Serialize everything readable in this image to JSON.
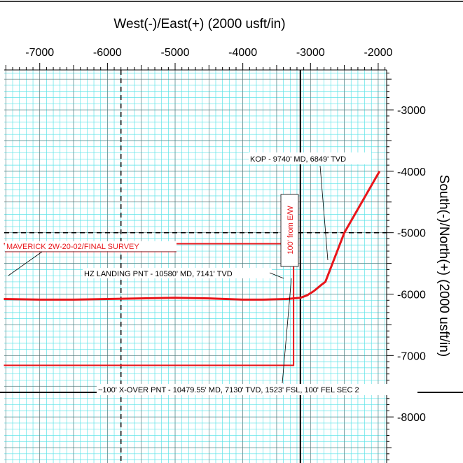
{
  "chart_data": {
    "type": "line",
    "title": "West(-)/East(+) (2000 usft/in)",
    "ylabel": "South(-)/North(+) (2000 usft/in)",
    "x_ticks": [
      -7000,
      -6000,
      -5000,
      -4000,
      -3000,
      -2000
    ],
    "x_tick_labels": [
      "-7000",
      "-6000",
      "-5000",
      "-4000",
      "-3000",
      "-2000"
    ],
    "y_ticks": [
      -3000,
      -4000,
      -5000,
      -6000,
      -7000,
      -8000
    ],
    "y_tick_labels": [
      "-3000",
      "-4000",
      "-5000",
      "-6000",
      "-7000",
      "-8000"
    ],
    "xlim": [
      -7525,
      -1875
    ],
    "ylim": [
      -8750,
      -2350
    ],
    "grid": true,
    "series": [
      {
        "name": "MAVERICK 2W-20-02/FINAL SURVEY",
        "color": "#e8161b",
        "x": [
          -1980,
          -2500,
          -2780,
          -2840,
          -2950,
          -3050,
          -3150,
          -3350,
          -3700,
          -4000,
          -4500,
          -5000,
          -5500,
          -6000,
          -6500,
          -7000,
          -7530
        ],
        "y": [
          -4000,
          -5000,
          -5800,
          -5850,
          -5950,
          -6020,
          -6060,
          -6080,
          -6090,
          -6090,
          -6070,
          -6060,
          -6070,
          -6080,
          -6090,
          -6090,
          -6080
        ]
      }
    ],
    "reference_lines": [
      {
        "kind": "vertical",
        "x": -3150,
        "style": "solid"
      },
      {
        "kind": "vertical",
        "x": -5800,
        "style": "dashed"
      },
      {
        "kind": "horizontal",
        "y": -5000,
        "style": "dashed"
      },
      {
        "kind": "horizontal",
        "y": -7600,
        "style": "solid"
      }
    ],
    "lease_line": {
      "color": "#e8161b",
      "x": [
        -7530,
        -3250,
        -3250,
        -7530
      ],
      "y": [
        -5180,
        -5180,
        -7160,
        -7160
      ]
    },
    "annotations": [
      {
        "text": "KOP - 9740' MD, 6849' TVD"
      },
      {
        "text": "HZ LANDING PNT - 10580' MD, 7141' TVD"
      },
      {
        "text": "~100' X-OVER PNT - 10479.55' MD, 7130' TVD, 1523' FSL, 100' FEL SEC 2"
      },
      {
        "text": "100' from E/W"
      }
    ]
  },
  "colors": {
    "grid_minor": "#5ee3e8",
    "grid_major": "#000000",
    "survey_line": "#e8161b",
    "background": "#ffffff"
  }
}
